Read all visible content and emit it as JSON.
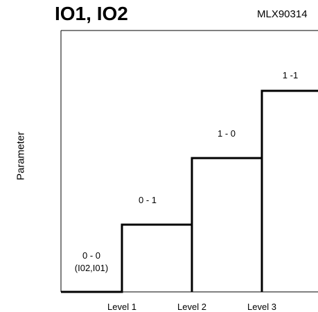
{
  "title": "IO1, IO2",
  "part_number": "MLX90314",
  "ylabel": "Parameter",
  "x_levels": [
    "Level 1",
    "Level 2",
    "Level 3"
  ],
  "steps": [
    {
      "label": "0 - 0",
      "sublabel": "(I02,I01)"
    },
    {
      "label": "0 - 1"
    },
    {
      "label": "1 - 0"
    },
    {
      "label": "1 -1"
    }
  ]
}
